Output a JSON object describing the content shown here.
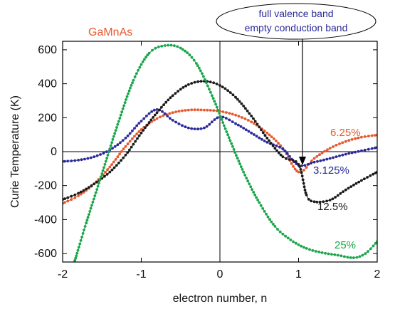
{
  "chart_data": {
    "type": "scatter",
    "title": "GaMnAs",
    "xlabel": "electron number, n",
    "ylabel": "Curie Temperature (K)",
    "xlim": [
      -2,
      2
    ],
    "ylim": [
      -650,
      650
    ],
    "xticks": [
      -2,
      -1,
      0,
      1,
      2
    ],
    "xtick_labels": [
      "-2",
      "-1",
      "0",
      "1",
      "2"
    ],
    "yticks": [
      -600,
      -400,
      -200,
      0,
      200,
      400,
      600
    ],
    "ytick_labels": [
      "-600",
      "-400",
      "-200",
      "0",
      "200",
      "400",
      "600"
    ],
    "grid": false,
    "reference_lines": {
      "x": 0,
      "y": 0
    },
    "annotation": {
      "lines": [
        "full valence band",
        "empty conduction band"
      ],
      "points_to_x": 1,
      "color": "#2a2a9a"
    },
    "series": [
      {
        "name": "6.25%",
        "color": "#e8582c",
        "points": [
          [
            -2,
            -305
          ],
          [
            -1.8,
            -260
          ],
          [
            -1.6,
            -190
          ],
          [
            -1.4,
            -90
          ],
          [
            -1.2,
            30
          ],
          [
            -1.0,
            130
          ],
          [
            -0.8,
            195
          ],
          [
            -0.6,
            230
          ],
          [
            -0.4,
            245
          ],
          [
            -0.2,
            245
          ],
          [
            0,
            238
          ],
          [
            0.2,
            215
          ],
          [
            0.4,
            175
          ],
          [
            0.6,
            110
          ],
          [
            0.8,
            20
          ],
          [
            1.0,
            -120
          ],
          [
            1.2,
            -40
          ],
          [
            1.4,
            20
          ],
          [
            1.6,
            60
          ],
          [
            1.8,
            85
          ],
          [
            2.0,
            98
          ]
        ]
      },
      {
        "name": "3.125%",
        "color": "#2a2a9a",
        "points": [
          [
            -2,
            -58
          ],
          [
            -1.8,
            -50
          ],
          [
            -1.6,
            -30
          ],
          [
            -1.4,
            10
          ],
          [
            -1.2,
            80
          ],
          [
            -1.0,
            180
          ],
          [
            -0.8,
            248
          ],
          [
            -0.6,
            185
          ],
          [
            -0.4,
            140
          ],
          [
            -0.2,
            140
          ],
          [
            0,
            205
          ],
          [
            0.2,
            165
          ],
          [
            0.4,
            110
          ],
          [
            0.6,
            55
          ],
          [
            0.8,
            15
          ],
          [
            1.0,
            -80
          ],
          [
            1.2,
            -62
          ],
          [
            1.4,
            -40
          ],
          [
            1.6,
            -15
          ],
          [
            1.8,
            5
          ],
          [
            2.0,
            25
          ]
        ]
      },
      {
        "name": "12.5%",
        "color": "#1a1a1a",
        "points": [
          [
            -2,
            -282
          ],
          [
            -1.8,
            -245
          ],
          [
            -1.6,
            -190
          ],
          [
            -1.4,
            -120
          ],
          [
            -1.2,
            -20
          ],
          [
            -1.0,
            110
          ],
          [
            -0.8,
            230
          ],
          [
            -0.6,
            330
          ],
          [
            -0.4,
            395
          ],
          [
            -0.2,
            415
          ],
          [
            0,
            390
          ],
          [
            0.2,
            320
          ],
          [
            0.4,
            210
          ],
          [
            0.6,
            80
          ],
          [
            0.8,
            -30
          ],
          [
            1.0,
            -75
          ],
          [
            1.1,
            -255
          ],
          [
            1.2,
            -295
          ],
          [
            1.4,
            -285
          ],
          [
            1.6,
            -225
          ],
          [
            1.8,
            -170
          ],
          [
            2.0,
            -120
          ]
        ]
      },
      {
        "name": "25%",
        "color": "#1aa64a",
        "points": [
          [
            -1.85,
            -650
          ],
          [
            -1.7,
            -420
          ],
          [
            -1.5,
            -130
          ],
          [
            -1.3,
            160
          ],
          [
            -1.1,
            420
          ],
          [
            -0.9,
            580
          ],
          [
            -0.7,
            625
          ],
          [
            -0.5,
            610
          ],
          [
            -0.3,
            520
          ],
          [
            -0.1,
            330
          ],
          [
            0.1,
            100
          ],
          [
            0.3,
            -120
          ],
          [
            0.5,
            -300
          ],
          [
            0.7,
            -440
          ],
          [
            0.9,
            -520
          ],
          [
            1.1,
            -570
          ],
          [
            1.3,
            -595
          ],
          [
            1.5,
            -610
          ],
          [
            1.7,
            -625
          ],
          [
            1.85,
            -600
          ],
          [
            2.0,
            -530
          ]
        ]
      }
    ],
    "series_labels": [
      "6.25%",
      "3.125%",
      "12.5%",
      "25%"
    ]
  }
}
